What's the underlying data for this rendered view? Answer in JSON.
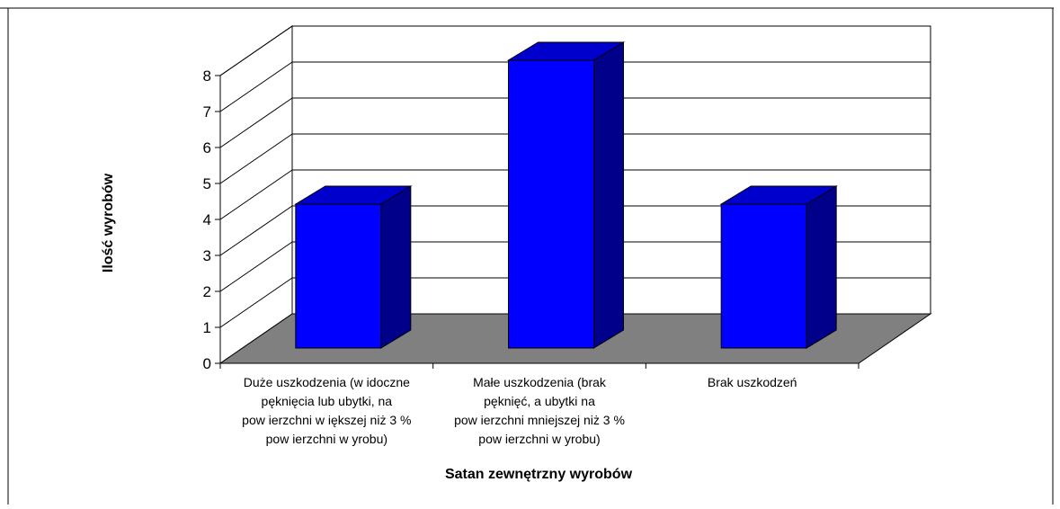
{
  "chart_data": {
    "type": "bar",
    "style": "3d-column",
    "title": "",
    "xlabel": "Satan zewnętrzny wyrobów",
    "ylabel": "Ilość wyrobów",
    "ylim": [
      0,
      8
    ],
    "yticks": [
      "0",
      "1",
      "2",
      "3",
      "4",
      "5",
      "6",
      "7",
      "8"
    ],
    "categories": [
      [
        "Duże uszkodzenia (w idoczne",
        "pęknięcia lub ubytki, na",
        "pow ierzchni w iększej niż 3 %",
        "pow ierzchni w yrobu)"
      ],
      [
        "Małe uszkodzenia (brak",
        "pęknięć, a ubytki na",
        "pow ierzchni mniejszej niż 3 %",
        "pow ierzchni w yrobu)"
      ],
      [
        "Brak uszkodzeń"
      ]
    ],
    "values": [
      4,
      8,
      4
    ],
    "grid": true,
    "legend": "none",
    "colors": {
      "bar_front": "#0000ff",
      "bar_side": "#00008b",
      "bar_top": "#0000cc",
      "floor": "#808080",
      "grid": "#000000"
    }
  }
}
